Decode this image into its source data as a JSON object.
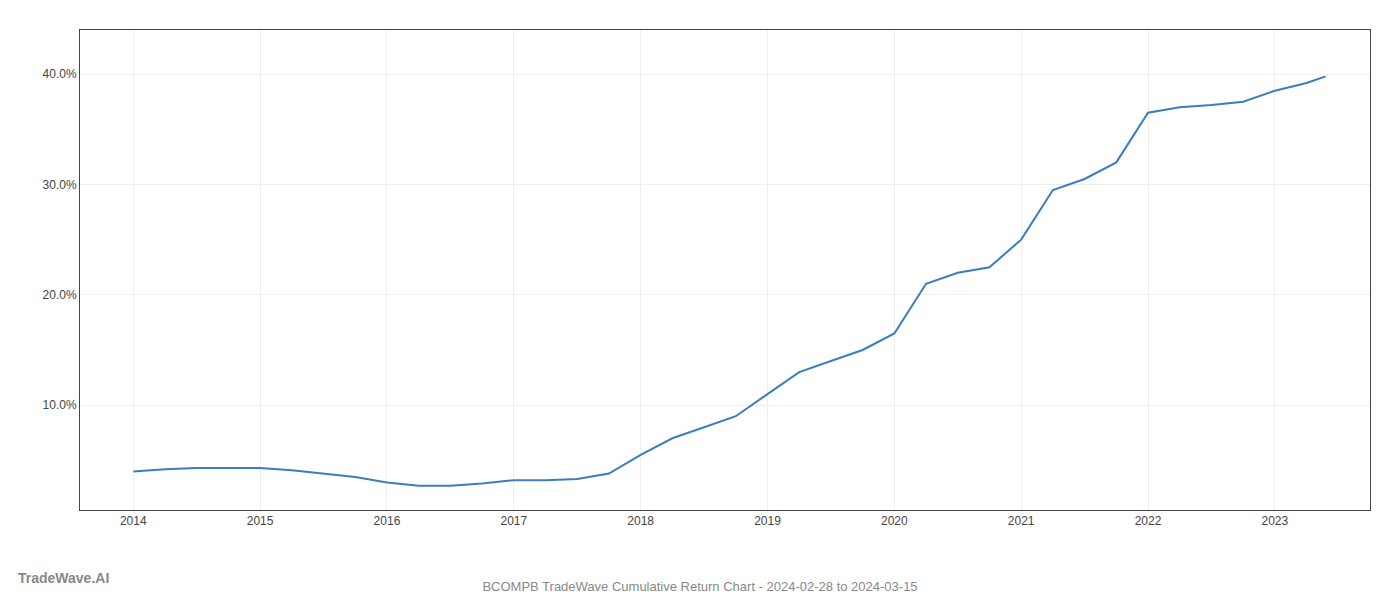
{
  "chart_data": {
    "type": "line",
    "title": "BCOMPB TradeWave Cumulative Return Chart - 2024-02-28 to 2024-03-15",
    "annotations": [
      "TradeWave.AI"
    ],
    "x": [
      2014.0,
      2014.25,
      2014.5,
      2014.75,
      2015.0,
      2015.25,
      2015.5,
      2015.75,
      2016.0,
      2016.25,
      2016.5,
      2016.75,
      2017.0,
      2017.25,
      2017.5,
      2017.75,
      2018.0,
      2018.25,
      2018.5,
      2018.75,
      2019.0,
      2019.25,
      2019.5,
      2019.75,
      2020.0,
      2020.25,
      2020.5,
      2020.75,
      2021.0,
      2021.25,
      2021.5,
      2021.75,
      2022.0,
      2022.25,
      2022.5,
      2022.75,
      2023.0,
      2023.25,
      2023.4
    ],
    "values": [
      4.0,
      4.2,
      4.3,
      4.3,
      4.3,
      4.1,
      3.8,
      3.5,
      3.0,
      2.7,
      2.7,
      2.9,
      3.2,
      3.2,
      3.3,
      3.8,
      5.5,
      7.0,
      8.0,
      9.0,
      11.0,
      13.0,
      14.0,
      15.0,
      16.5,
      21.0,
      22.0,
      22.5,
      25.0,
      29.5,
      30.5,
      32.0,
      36.5,
      37.0,
      37.2,
      37.5,
      38.5,
      39.2,
      39.8
    ],
    "color": "#3a7ebf",
    "xlim": [
      2013.58,
      2023.75
    ],
    "ylim": [
      0.5,
      44
    ],
    "xticks": [
      2014,
      2015,
      2016,
      2017,
      2018,
      2019,
      2020,
      2021,
      2022,
      2023
    ],
    "yticks": [
      {
        "value": 10,
        "label": "10.0%"
      },
      {
        "value": 20,
        "label": "20.0%"
      },
      {
        "value": 30,
        "label": "30.0%"
      },
      {
        "value": 40,
        "label": "40.0%"
      }
    ],
    "grid": true
  }
}
